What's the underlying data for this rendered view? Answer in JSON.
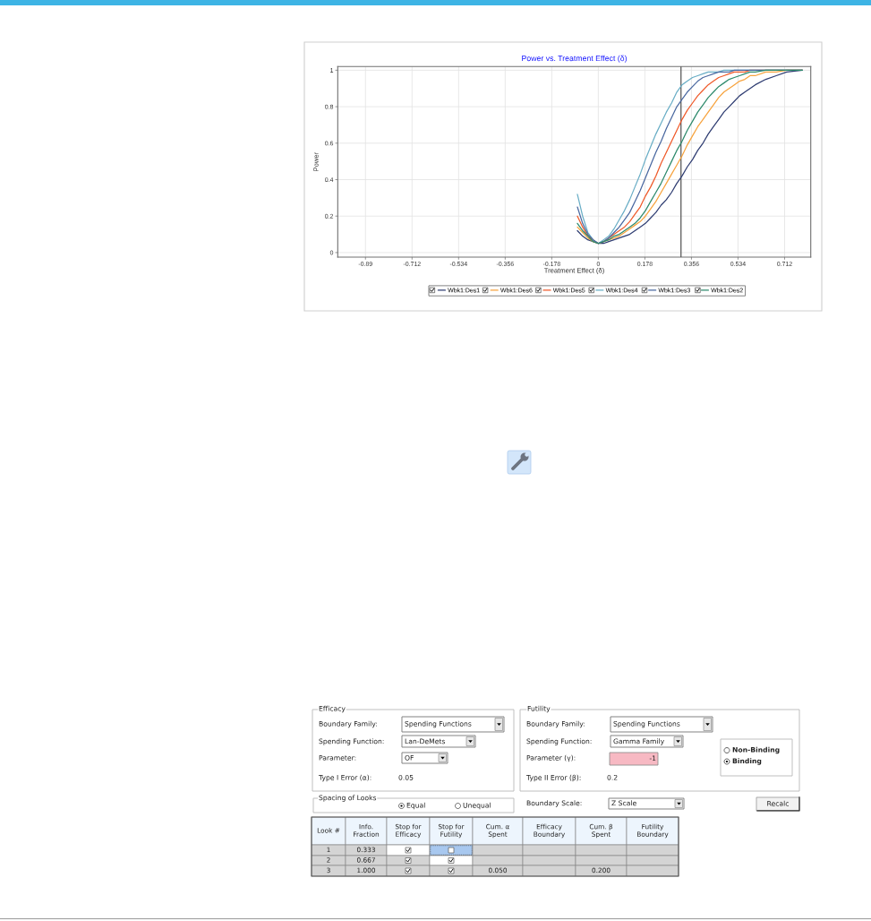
{
  "chart_data": [
    {
      "type": "line",
      "title": "Power vs. Treatment Effect (δ)",
      "xlabel": "Treatment Effect (δ)",
      "ylabel": "Power",
      "x": [
        -0.08,
        -0.06,
        -0.04,
        -0.02,
        0,
        0.02,
        0.04,
        0.06,
        0.08,
        0.1,
        0.12,
        0.14,
        0.16,
        0.18,
        0.2,
        0.22,
        0.24,
        0.26,
        0.28,
        0.3,
        0.32,
        0.34,
        0.36,
        0.38,
        0.4,
        0.42,
        0.44,
        0.46,
        0.48,
        0.5,
        0.52,
        0.54,
        0.56,
        0.58,
        0.6,
        0.64,
        0.68,
        0.72,
        0.78
      ],
      "series": [
        {
          "name": "Wbk1:Des1",
          "color": "#2f3d72",
          "values": [
            0.12,
            0.09,
            0.07,
            0.06,
            0.05,
            0.05,
            0.06,
            0.07,
            0.08,
            0.09,
            0.1,
            0.12,
            0.14,
            0.16,
            0.19,
            0.22,
            0.26,
            0.29,
            0.33,
            0.38,
            0.42,
            0.47,
            0.51,
            0.56,
            0.6,
            0.65,
            0.69,
            0.73,
            0.77,
            0.8,
            0.83,
            0.86,
            0.88,
            0.9,
            0.92,
            0.95,
            0.97,
            0.99,
            1
          ]
        },
        {
          "name": "Wbk1:Des6",
          "color": "#f7a33e",
          "values": [
            0.14,
            0.11,
            0.08,
            0.06,
            0.05,
            0.06,
            0.07,
            0.08,
            0.09,
            0.11,
            0.13,
            0.15,
            0.17,
            0.2,
            0.24,
            0.28,
            0.33,
            0.38,
            0.43,
            0.48,
            0.53,
            0.59,
            0.64,
            0.69,
            0.73,
            0.77,
            0.81,
            0.85,
            0.88,
            0.9,
            0.92,
            0.94,
            0.95,
            0.97,
            0.97,
            0.99,
            0.99,
            1,
            1
          ]
        },
        {
          "name": "Wbk1:Des5",
          "color": "#ef5a2a",
          "values": [
            0.2,
            0.14,
            0.09,
            0.07,
            0.05,
            0.06,
            0.08,
            0.1,
            0.12,
            0.14,
            0.17,
            0.21,
            0.25,
            0.31,
            0.36,
            0.42,
            0.49,
            0.55,
            0.61,
            0.67,
            0.73,
            0.78,
            0.82,
            0.86,
            0.89,
            0.92,
            0.94,
            0.96,
            0.97,
            0.98,
            0.99,
            0.99,
            0.99,
            1,
            1,
            1,
            1,
            1,
            1
          ]
        },
        {
          "name": "Wbk1:Des4",
          "color": "#6aaec6",
          "values": [
            0.32,
            0.2,
            0.11,
            0.07,
            0.05,
            0.07,
            0.09,
            0.13,
            0.18,
            0.23,
            0.29,
            0.36,
            0.43,
            0.51,
            0.58,
            0.65,
            0.71,
            0.77,
            0.82,
            0.88,
            0.92,
            0.94,
            0.96,
            0.97,
            0.98,
            0.99,
            0.99,
            0.99,
            1,
            1,
            1,
            1,
            1,
            1,
            1,
            1,
            1,
            1,
            1
          ]
        },
        {
          "name": "Wbk1:Des3",
          "color": "#4a68a0",
          "values": [
            0.25,
            0.16,
            0.1,
            0.07,
            0.05,
            0.06,
            0.08,
            0.11,
            0.14,
            0.18,
            0.22,
            0.28,
            0.34,
            0.41,
            0.48,
            0.55,
            0.61,
            0.68,
            0.74,
            0.8,
            0.84,
            0.88,
            0.91,
            0.94,
            0.96,
            0.97,
            0.98,
            0.99,
            0.99,
            0.99,
            1,
            1,
            1,
            1,
            1,
            1,
            1,
            1,
            1
          ]
        },
        {
          "name": "Wbk1:Des2",
          "color": "#2e8a6c",
          "values": [
            0.16,
            0.12,
            0.09,
            0.06,
            0.05,
            0.06,
            0.07,
            0.09,
            0.1,
            0.12,
            0.14,
            0.16,
            0.19,
            0.23,
            0.28,
            0.33,
            0.38,
            0.44,
            0.5,
            0.56,
            0.61,
            0.67,
            0.72,
            0.77,
            0.81,
            0.85,
            0.88,
            0.91,
            0.93,
            0.95,
            0.96,
            0.97,
            0.98,
            0.99,
            0.99,
            1,
            1,
            1,
            1
          ]
        }
      ],
      "xlim": [
        -0.996,
        0.812
      ],
      "ylim": [
        -0.025,
        1.02
      ],
      "xticks": [
        -0.89,
        -0.712,
        -0.534,
        -0.356,
        -0.178,
        0,
        0.178,
        0.356,
        0.534,
        0.712
      ],
      "yticks": [
        0,
        0.2,
        0.4,
        0.6,
        0.8,
        1
      ],
      "ref_lines": [
        {
          "axis": "x",
          "value": 0.316,
          "color": "#555555"
        }
      ],
      "grid": true,
      "legend": "bottom",
      "marker": "none",
      "line_style": "solid"
    },
    {
      "type": "other",
      "annotations": [
        "Efficacy",
        "Boundary Family:",
        "Spending Functions",
        "Spending Function:",
        "Lan-DeMets",
        "Parameter:",
        "OF",
        "Type I Error (α):",
        "0.05",
        "Futility",
        "Boundary Family:",
        "Spending Functions",
        "Spending Function:",
        "Gamma Family",
        "Parameter (γ):",
        "-1",
        "Type II Error (β):",
        "0.2",
        "Non-Binding",
        "Binding",
        "Spacing of Looks",
        "Equal",
        "Unequal",
        "Boundary Scale:",
        "Z Scale",
        "Recalc",
        "Look #",
        "Info.\nFraction",
        "Stop for\nEfficacy",
        "Stop for\nFutility",
        "Cum. α\nSpent",
        "Efficacy\nBoundary",
        "Cum. β\nSpent",
        "Futility\nBoundary",
        "1",
        "0.333",
        "2",
        "0.667",
        "3",
        "1.000",
        "0.050",
        "0.200"
      ]
    }
  ]
}
